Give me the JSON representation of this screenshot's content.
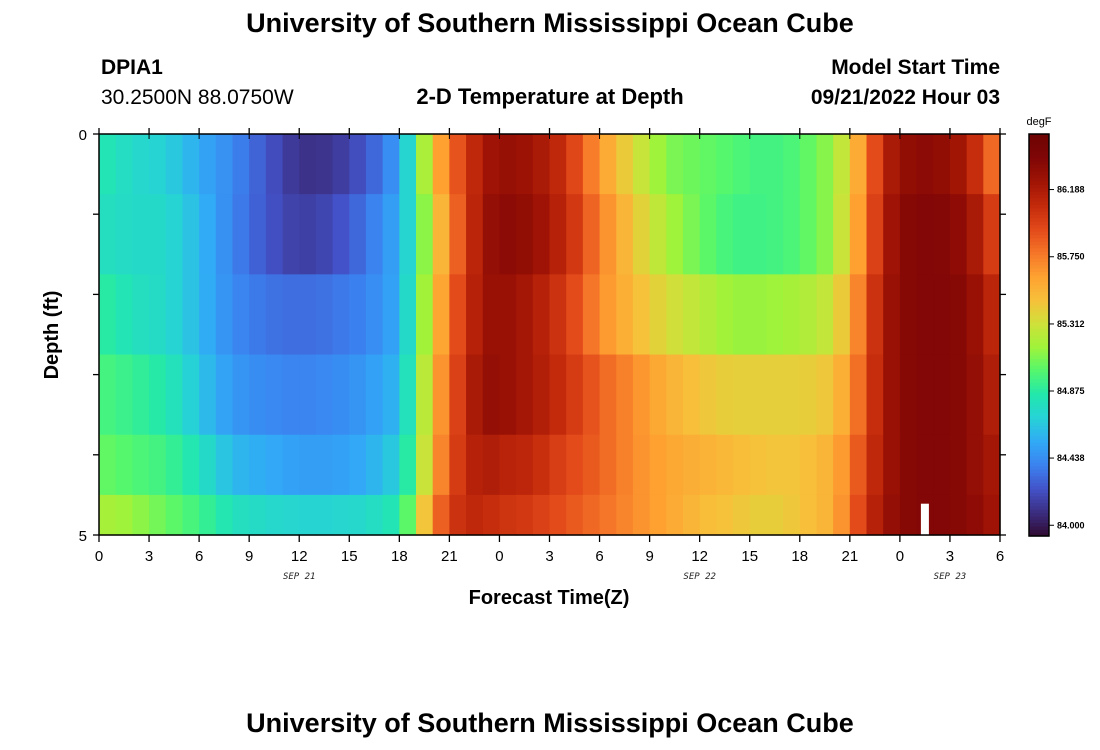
{
  "page": {
    "title_top": "University of Southern Mississippi Ocean Cube",
    "title_bottom": "University of Southern Mississippi Ocean Cube",
    "station": "DPIA1",
    "location": "30.2500N  88.0750W",
    "plot_title": "2-D Temperature at Depth",
    "model_start_label": "Model Start Time",
    "model_start_value": "09/21/2022 Hour 03"
  },
  "chart_data": {
    "type": "heatmap",
    "title": "2-D Temperature at Depth",
    "xlabel": "Forecast Time(Z)",
    "ylabel": "Depth (ft)",
    "x_unit": "hours from 2022-09-21 00Z",
    "xlim": [
      0,
      54
    ],
    "ylim": [
      0,
      5
    ],
    "y_reversed": true,
    "x_ticks": [
      0,
      3,
      6,
      9,
      12,
      15,
      18,
      21,
      24,
      27,
      30,
      33,
      36,
      39,
      42,
      45,
      48,
      51,
      54
    ],
    "x_tick_labels": [
      "0",
      "3",
      "6",
      "9",
      "12",
      "15",
      "18",
      "21",
      "0",
      "3",
      "6",
      "9",
      "12",
      "15",
      "18",
      "21",
      "0",
      "3",
      "6"
    ],
    "y_tick_labels": [
      "0",
      "5"
    ],
    "date_labels": [
      {
        "x": 12,
        "text": "SEP 21"
      },
      {
        "x": 36,
        "text": "SEP 22"
      },
      {
        "x": 51,
        "text": "SEP 23"
      }
    ],
    "depth_levels": [
      0.25,
      1.25,
      2.25,
      3.25,
      4.25,
      4.75
    ],
    "time_knots": [
      0,
      2,
      4,
      6,
      8,
      10,
      12,
      14,
      16,
      18,
      19,
      20,
      21,
      22,
      23,
      24,
      26,
      28,
      30,
      32,
      34,
      36,
      38,
      40,
      42,
      44,
      45,
      46,
      47,
      48,
      50,
      52,
      53,
      54
    ],
    "temperature_degF": [
      [
        84.85,
        84.75,
        84.7,
        84.55,
        84.42,
        84.25,
        84.1,
        84.12,
        84.25,
        84.5,
        84.95,
        85.45,
        85.8,
        86.0,
        86.2,
        86.3,
        86.25,
        86.05,
        85.65,
        85.35,
        85.1,
        85.05,
        85.0,
        84.95,
        85.0,
        85.15,
        85.4,
        85.75,
        86.1,
        86.3,
        86.35,
        86.2,
        85.95,
        85.7
      ],
      [
        84.8,
        84.75,
        84.75,
        84.6,
        84.4,
        84.25,
        84.15,
        84.2,
        84.35,
        84.55,
        84.9,
        85.35,
        85.7,
        86.0,
        86.25,
        86.35,
        86.3,
        86.1,
        85.75,
        85.45,
        85.2,
        85.05,
        84.95,
        84.95,
        85.0,
        85.15,
        85.45,
        85.8,
        86.15,
        86.35,
        86.4,
        86.3,
        86.1,
        85.9
      ],
      [
        84.9,
        84.8,
        84.75,
        84.6,
        84.42,
        84.35,
        84.32,
        84.35,
        84.4,
        84.55,
        84.95,
        85.4,
        85.8,
        86.05,
        86.25,
        86.3,
        86.2,
        86.0,
        85.7,
        85.5,
        85.35,
        85.25,
        85.15,
        85.15,
        85.2,
        85.3,
        85.55,
        85.9,
        86.2,
        86.35,
        86.4,
        86.35,
        86.2,
        86.05
      ],
      [
        84.98,
        84.92,
        84.85,
        84.65,
        84.48,
        84.42,
        84.4,
        84.42,
        84.48,
        84.6,
        85.0,
        85.5,
        85.85,
        86.1,
        86.3,
        86.3,
        86.2,
        86.05,
        85.85,
        85.7,
        85.55,
        85.45,
        85.4,
        85.4,
        85.4,
        85.45,
        85.65,
        85.95,
        86.2,
        86.35,
        86.4,
        86.35,
        86.25,
        86.1
      ],
      [
        85.05,
        85.0,
        84.95,
        84.8,
        84.6,
        84.55,
        84.5,
        84.5,
        84.55,
        84.7,
        85.05,
        85.55,
        85.9,
        86.1,
        86.2,
        86.15,
        86.1,
        85.95,
        85.85,
        85.7,
        85.6,
        85.55,
        85.5,
        85.45,
        85.45,
        85.55,
        85.75,
        86.0,
        86.2,
        86.35,
        86.4,
        86.35,
        86.25,
        86.2
      ],
      [
        85.2,
        85.15,
        85.05,
        84.95,
        84.8,
        84.75,
        84.72,
        84.72,
        84.75,
        84.85,
        85.2,
        85.7,
        86.0,
        86.1,
        86.1,
        86.05,
        86.0,
        85.9,
        85.8,
        85.7,
        85.6,
        85.5,
        85.45,
        85.4,
        85.45,
        85.55,
        85.8,
        86.05,
        86.25,
        86.35,
        86.4,
        86.35,
        86.3,
        86.2
      ]
    ],
    "colorbar": {
      "label": "degF",
      "min": 83.93,
      "max": 86.55,
      "tick_labels": [
        "84.000",
        "84.438",
        "84.875",
        "85.312",
        "85.750",
        "86.188"
      ],
      "tick_values": [
        84.0,
        84.438,
        84.875,
        85.312,
        85.75,
        86.188
      ]
    },
    "colormap": [
      "#300a2f",
      "#3b2d80",
      "#4352c8",
      "#3b82f0",
      "#31aaf6",
      "#27d2d7",
      "#22e8ac",
      "#53f76e",
      "#9ff33a",
      "#cfe13a",
      "#f7c03a",
      "#fea131",
      "#f57528",
      "#e2491a",
      "#c32a0b",
      "#a01405",
      "#800606",
      "#6e0404"
    ],
    "gap_marker": {
      "x": 49.5,
      "depth_from": 4.5,
      "depth_to": 5.0,
      "color": "#ffffff"
    }
  }
}
